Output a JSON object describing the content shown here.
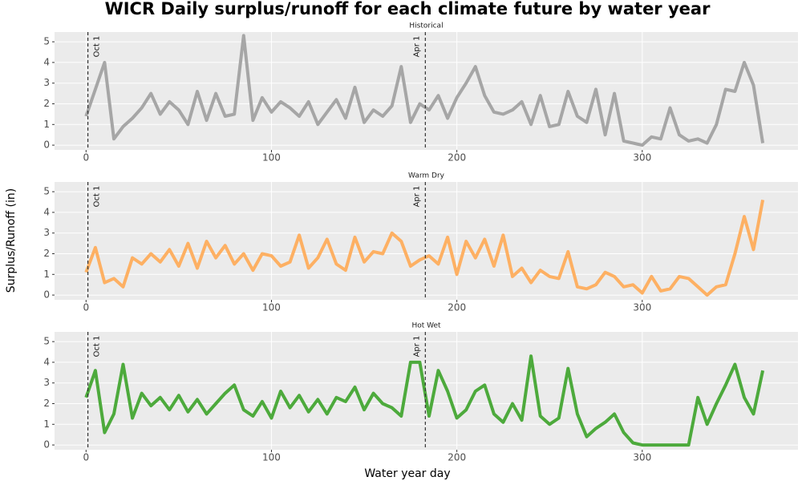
{
  "title": "WICR Daily surplus/runoff for each climate future by water year",
  "x_label": "Water year day",
  "y_label": "Surplus/Runoff (in)",
  "chart_data": [
    {
      "type": "line",
      "title": "Historical",
      "x": [
        0,
        5,
        10,
        15,
        20,
        25,
        30,
        35,
        40,
        45,
        50,
        55,
        60,
        65,
        70,
        75,
        80,
        85,
        90,
        95,
        100,
        105,
        110,
        115,
        120,
        125,
        130,
        135,
        140,
        145,
        150,
        155,
        160,
        165,
        170,
        175,
        180,
        185,
        190,
        195,
        200,
        205,
        210,
        215,
        220,
        225,
        230,
        235,
        240,
        245,
        250,
        255,
        260,
        265,
        270,
        275,
        280,
        285,
        290,
        295,
        300,
        305,
        310,
        315,
        320,
        325,
        330,
        335,
        340,
        345,
        350,
        355,
        360,
        365
      ],
      "series": [
        {
          "color": "#a6a6a6",
          "values": [
            1.4,
            2.7,
            4.0,
            0.3,
            0.9,
            1.3,
            1.8,
            2.5,
            1.5,
            2.1,
            1.7,
            1.0,
            2.6,
            1.2,
            2.5,
            1.4,
            1.5,
            5.3,
            1.2,
            2.3,
            1.6,
            2.1,
            1.8,
            1.4,
            2.1,
            1.0,
            1.6,
            2.2,
            1.3,
            2.8,
            1.1,
            1.7,
            1.4,
            1.9,
            3.8,
            1.1,
            2.0,
            1.7,
            2.4,
            1.3,
            2.3,
            3.0,
            3.8,
            2.4,
            1.6,
            1.5,
            1.7,
            2.1,
            1.0,
            2.4,
            0.9,
            1.0,
            2.6,
            1.4,
            1.1,
            2.7,
            0.5,
            2.5,
            0.2,
            0.1,
            0.0,
            0.4,
            0.3,
            1.8,
            0.5,
            0.2,
            0.3,
            0.1,
            1.0,
            2.7,
            2.6,
            4.0,
            2.9,
            0.1
          ]
        }
      ],
      "annotations": [
        {
          "x": 1,
          "label": "Oct 1"
        },
        {
          "x": 183,
          "label": "Apr 1"
        }
      ],
      "xlim": [
        -17,
        384
      ],
      "xticks": [
        0,
        100,
        200,
        300
      ],
      "ylim": [
        -0.23,
        5.47
      ],
      "yticks": [
        0,
        1,
        2,
        3,
        4,
        5
      ],
      "grid": true
    },
    {
      "type": "line",
      "title": "Warm Dry",
      "x": [
        0,
        5,
        10,
        15,
        20,
        25,
        30,
        35,
        40,
        45,
        50,
        55,
        60,
        65,
        70,
        75,
        80,
        85,
        90,
        95,
        100,
        105,
        110,
        115,
        120,
        125,
        130,
        135,
        140,
        145,
        150,
        155,
        160,
        165,
        170,
        175,
        180,
        185,
        190,
        195,
        200,
        205,
        210,
        215,
        220,
        225,
        230,
        235,
        240,
        245,
        250,
        255,
        260,
        265,
        270,
        275,
        280,
        285,
        290,
        295,
        300,
        305,
        310,
        315,
        320,
        325,
        330,
        335,
        340,
        345,
        350,
        355,
        360,
        365
      ],
      "series": [
        {
          "color": "#fdb063",
          "values": [
            1.1,
            2.3,
            0.6,
            0.8,
            0.4,
            1.8,
            1.5,
            2.0,
            1.6,
            2.2,
            1.4,
            2.5,
            1.3,
            2.6,
            1.8,
            2.4,
            1.5,
            2.0,
            1.2,
            2.0,
            1.9,
            1.4,
            1.6,
            2.9,
            1.3,
            1.8,
            2.7,
            1.5,
            1.2,
            2.8,
            1.6,
            2.1,
            2.0,
            3.0,
            2.6,
            1.4,
            1.7,
            1.9,
            1.5,
            2.8,
            1.0,
            2.6,
            1.8,
            2.7,
            1.4,
            2.9,
            0.9,
            1.3,
            0.6,
            1.2,
            0.9,
            0.8,
            2.1,
            0.4,
            0.3,
            0.5,
            1.1,
            0.9,
            0.4,
            0.5,
            0.1,
            0.9,
            0.2,
            0.3,
            0.9,
            0.8,
            0.4,
            0.0,
            0.4,
            0.5,
            2.0,
            3.8,
            2.2,
            4.6
          ]
        }
      ],
      "annotations": [
        {
          "x": 1,
          "label": "Oct 1"
        },
        {
          "x": 183,
          "label": "Apr 1"
        }
      ],
      "xlim": [
        -17,
        384
      ],
      "xticks": [
        0,
        100,
        200,
        300
      ],
      "ylim": [
        -0.23,
        5.47
      ],
      "yticks": [
        0,
        1,
        2,
        3,
        4,
        5
      ],
      "grid": true
    },
    {
      "type": "line",
      "title": "Hot Wet",
      "x": [
        0,
        5,
        10,
        15,
        20,
        25,
        30,
        35,
        40,
        45,
        50,
        55,
        60,
        65,
        70,
        75,
        80,
        85,
        90,
        95,
        100,
        105,
        110,
        115,
        120,
        125,
        130,
        135,
        140,
        145,
        150,
        155,
        160,
        165,
        170,
        175,
        180,
        185,
        190,
        195,
        200,
        205,
        210,
        215,
        220,
        225,
        230,
        235,
        240,
        245,
        250,
        255,
        260,
        265,
        270,
        275,
        280,
        285,
        290,
        295,
        300,
        305,
        310,
        315,
        320,
        325,
        330,
        335,
        340,
        345,
        350,
        355,
        360,
        365
      ],
      "series": [
        {
          "color": "#4daa3c",
          "values": [
            2.3,
            3.6,
            0.6,
            1.5,
            3.9,
            1.3,
            2.5,
            1.9,
            2.3,
            1.7,
            2.4,
            1.6,
            2.2,
            1.5,
            2.0,
            2.5,
            2.9,
            1.7,
            1.4,
            2.1,
            1.3,
            2.6,
            1.8,
            2.4,
            1.6,
            2.2,
            1.5,
            2.3,
            2.1,
            2.8,
            1.7,
            2.5,
            2.0,
            1.8,
            1.4,
            4.0,
            4.0,
            1.4,
            3.6,
            2.6,
            1.3,
            1.7,
            2.6,
            2.9,
            1.5,
            1.1,
            2.0,
            1.2,
            4.3,
            1.4,
            1.0,
            1.3,
            3.7,
            1.5,
            0.4,
            0.8,
            1.1,
            1.5,
            0.6,
            0.1,
            0.0,
            0.0,
            0.0,
            0.0,
            0.0,
            0.0,
            2.3,
            1.0,
            2.0,
            2.9,
            3.9,
            2.3,
            1.5,
            3.6
          ]
        }
      ],
      "annotations": [
        {
          "x": 1,
          "label": "Oct 1"
        },
        {
          "x": 183,
          "label": "Apr 1"
        }
      ],
      "xlim": [
        -17,
        384
      ],
      "xticks": [
        0,
        100,
        200,
        300
      ],
      "ylim": [
        -0.23,
        5.47
      ],
      "yticks": [
        0,
        1,
        2,
        3,
        4,
        5
      ],
      "grid": true
    }
  ]
}
